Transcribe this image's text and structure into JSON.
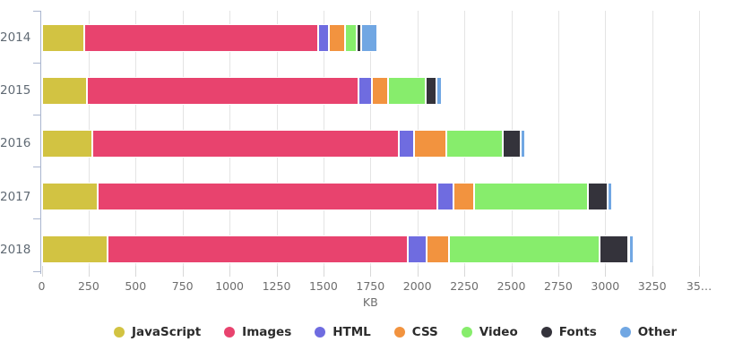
{
  "chart_data": {
    "type": "bar",
    "orientation": "horizontal",
    "stacked": true,
    "categories": [
      "2014",
      "2015",
      "2016",
      "2017",
      "2018"
    ],
    "series": [
      {
        "name": "JavaScript",
        "color": "#d2c342",
        "values": [
          225,
          240,
          270,
          300,
          350
        ]
      },
      {
        "name": "Images",
        "color": "#e8436e",
        "values": [
          1245,
          1445,
          1630,
          1805,
          1600
        ]
      },
      {
        "name": "HTML",
        "color": "#6f6ce0",
        "values": [
          60,
          75,
          80,
          85,
          100
        ]
      },
      {
        "name": "CSS",
        "color": "#f2933f",
        "values": [
          85,
          85,
          175,
          110,
          120
        ]
      },
      {
        "name": "Video",
        "color": "#87ed6c",
        "values": [
          60,
          200,
          300,
          610,
          800
        ]
      },
      {
        "name": "Fonts",
        "color": "#34333b",
        "values": [
          25,
          55,
          95,
          105,
          155
        ]
      },
      {
        "name": "Other",
        "color": "#71a7e3",
        "values": [
          85,
          30,
          25,
          20,
          25
        ]
      }
    ],
    "totals": [
      1785,
      2130,
      2575,
      3035,
      3150
    ],
    "xlabel": "KB",
    "ylabel": "",
    "xlim": [
      0,
      3500
    ],
    "x_tick_step": 250,
    "x_tick_labels": [
      "0",
      "250",
      "500",
      "750",
      "1000",
      "1250",
      "1500",
      "1750",
      "2000",
      "2250",
      "2500",
      "2750",
      "3000",
      "3250",
      "35…"
    ],
    "grid": true,
    "legend_position": "bottom",
    "legend_labels": [
      "JavaScript",
      "Images",
      "HTML",
      "CSS",
      "Video",
      "Fonts",
      "Other"
    ],
    "style": {
      "grid_color": "#e4e4e4",
      "axis_color": "#aab6cf",
      "x_tick_color": "#d8d8d8",
      "x_label_color": "#6e6e6e",
      "y_label_color": "#606a74",
      "legend_text_color": "#2b2b2b",
      "segment_stroke": "#ffffff"
    }
  }
}
